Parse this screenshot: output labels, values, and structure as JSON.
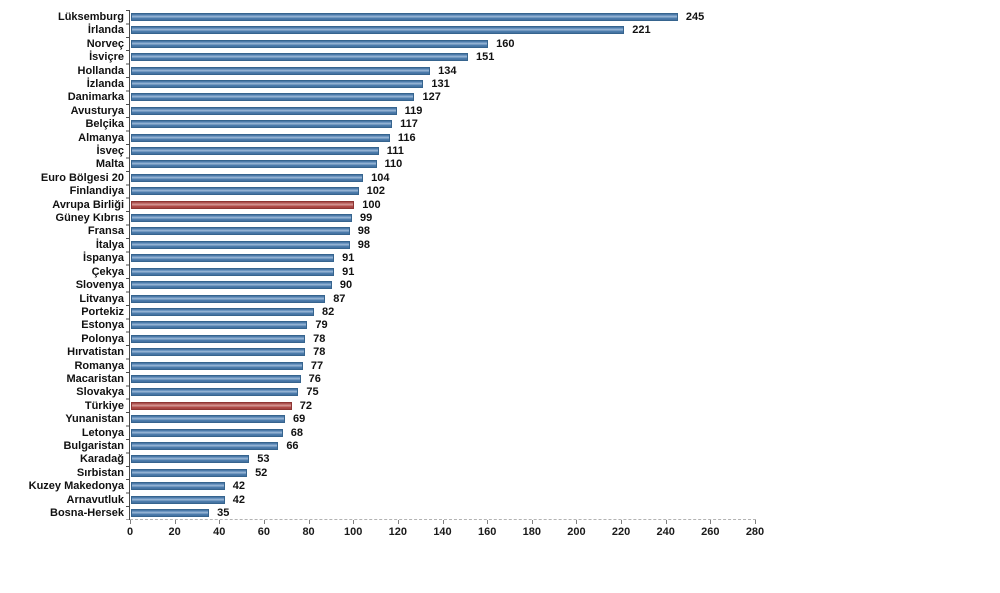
{
  "chart_data": {
    "type": "bar",
    "orientation": "horizontal",
    "title": "",
    "xlabel": "",
    "ylabel": "",
    "xlim": [
      0,
      280
    ],
    "xticks": [
      0,
      20,
      40,
      60,
      80,
      100,
      120,
      140,
      160,
      180,
      200,
      220,
      240,
      260,
      280
    ],
    "grid": false,
    "legend": "none",
    "value_labels_shown": true,
    "categories": [
      "Lüksemburg",
      "İrlanda",
      "Norveç",
      "İsviçre",
      "Hollanda",
      "İzlanda",
      "Danimarka",
      "Avusturya",
      "Belçika",
      "Almanya",
      "İsveç",
      "Malta",
      "Euro Bölgesi 20",
      "Finlandiya",
      "Avrupa Birliği",
      "Güney Kıbrıs",
      "Fransa",
      "İtalya",
      "İspanya",
      "Çekya",
      "Slovenya",
      "Litvanya",
      "Portekiz",
      "Estonya",
      "Polonya",
      "Hırvatistan",
      "Romanya",
      "Macaristan",
      "Slovakya",
      "Türkiye",
      "Yunanistan",
      "Letonya",
      "Bulgaristan",
      "Karadağ",
      "Sırbistan",
      "Kuzey Makedonya",
      "Arnavutluk",
      "Bosna-Hersek"
    ],
    "values": [
      245,
      221,
      160,
      151,
      134,
      131,
      127,
      119,
      117,
      116,
      111,
      110,
      104,
      102,
      100,
      99,
      98,
      98,
      91,
      91,
      90,
      87,
      82,
      79,
      78,
      78,
      77,
      76,
      75,
      72,
      69,
      68,
      66,
      53,
      52,
      42,
      42,
      35
    ],
    "highlighted_categories": [
      "Avrupa Birliği",
      "Türkiye"
    ],
    "colors": {
      "bar": "#4E7EAE",
      "bar_border": "#36648E",
      "highlight": "#B14C49",
      "highlight_border": "#8E3533",
      "axis_line": "#4A4A4A",
      "axis_dashed": "#B3B3B3",
      "tick": "#7F7F7F",
      "text": "#111111",
      "background": "#FFFFFF"
    }
  }
}
